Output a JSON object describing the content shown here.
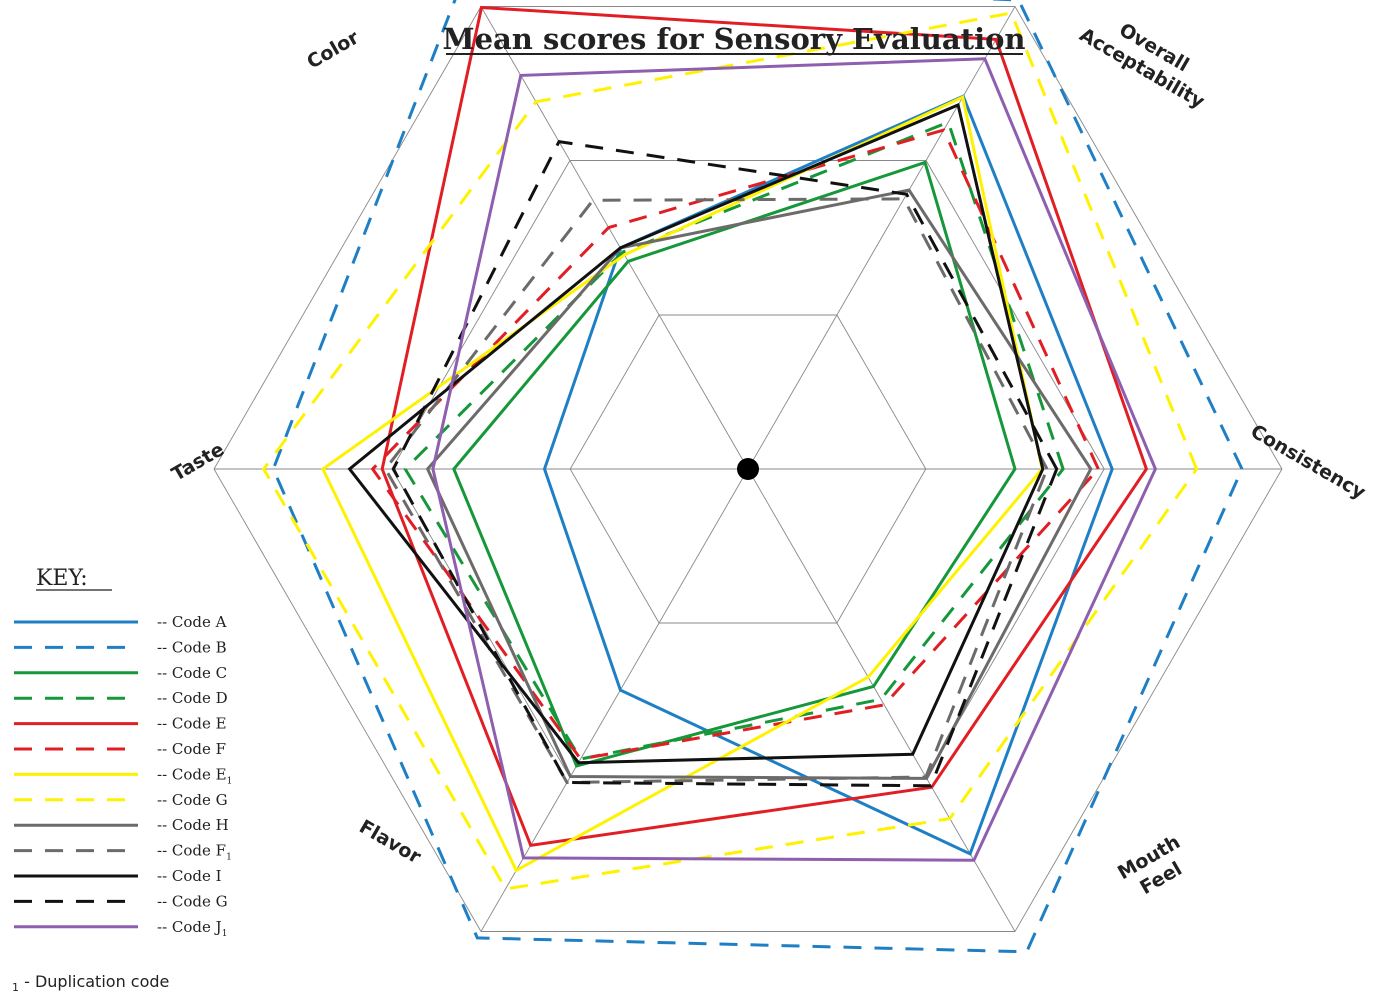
{
  "chart_data": {
    "type": "radar",
    "title": "Mean scores for Sensory Evaluation",
    "axes": [
      "Consistency",
      "Overall Acceptability",
      "Color",
      "Taste",
      "Flavor",
      "Mouth Feel"
    ],
    "axis_display": [
      {
        "axis": "Consistency",
        "lines": [
          "Consistency"
        ]
      },
      {
        "axis": "Overall Acceptability",
        "lines": [
          "Overall",
          "Acceptability"
        ]
      },
      {
        "axis": "Color",
        "lines": [
          "Color"
        ]
      },
      {
        "axis": "Taste",
        "lines": [
          "Taste"
        ]
      },
      {
        "axis": "Flavor",
        "lines": [
          "Flavor"
        ]
      },
      {
        "axis": "Mouth Feel",
        "lines": [
          "Mouth",
          "Feel"
        ]
      }
    ],
    "scale_note": "values are relative to the outermost grid hexagon (=1.0)",
    "series": [
      {
        "name": "-- Code A",
        "base": "-- Code A",
        "sub": "",
        "color": "#1f7fc4",
        "dash": false,
        "values": [
          0.682,
          0.806,
          0.478,
          0.381,
          0.478,
          0.832
        ]
      },
      {
        "name": "-- Code B",
        "base": "-- Code B",
        "sub": "",
        "color": "#1f7fc4",
        "dash": true,
        "values": [
          0.925,
          1.014,
          1.064,
          0.889,
          1.014,
          1.044
        ]
      },
      {
        "name": "-- Code C",
        "base": "-- Code C",
        "sub": "",
        "color": "#16973a",
        "dash": false,
        "values": [
          0.5,
          0.663,
          0.449,
          0.551,
          0.642,
          0.47
        ]
      },
      {
        "name": "-- Code D",
        "base": "-- Code D",
        "sub": "",
        "color": "#16973a",
        "dash": true,
        "values": [
          0.59,
          0.75,
          0.469,
          0.642,
          0.627,
          0.498
        ]
      },
      {
        "name": "-- Code E",
        "base": "-- Code E",
        "sub": "",
        "color": "#e11e24",
        "dash": false,
        "values": [
          0.746,
          0.929,
          0.998,
          0.685,
          0.814,
          0.688
        ]
      },
      {
        "name": "-- Code F",
        "base": "-- Code F",
        "sub": "",
        "color": "#e11e24",
        "dash": true,
        "values": [
          0.656,
          0.733,
          0.522,
          0.703,
          0.627,
          0.51
        ]
      },
      {
        "name": "-- Code E₁",
        "base": "-- Code E",
        "sub": "1",
        "color": "#fff200",
        "dash": false,
        "values": [
          0.551,
          0.804,
          0.463,
          0.796,
          0.868,
          0.45
        ]
      },
      {
        "name": "-- Code G",
        "base": "-- Code G",
        "sub": "",
        "color": "#fff200",
        "dash": true,
        "values": [
          0.84,
          0.986,
          0.794,
          0.907,
          0.908,
          0.756
        ]
      },
      {
        "name": "-- Code H",
        "base": "-- Code H",
        "sub": "",
        "color": "#6d6a6a",
        "dash": false,
        "values": [
          0.642,
          0.603,
          0.478,
          0.6,
          0.665,
          0.669
        ]
      },
      {
        "name": "-- Code F₁",
        "base": "-- Code F",
        "sub": "1",
        "color": "#6d6a6a",
        "dash": true,
        "values": [
          0.56,
          0.584,
          0.581,
          0.679,
          0.678,
          0.666
        ]
      },
      {
        "name": "-- Code I",
        "base": "-- Code I",
        "sub": "",
        "color": "#111111",
        "dash": false,
        "values": [
          0.552,
          0.787,
          0.478,
          0.746,
          0.635,
          0.617
        ]
      },
      {
        "name": "-- Code G",
        "base": "-- Code G",
        "sub": "",
        "color": "#111111",
        "dash": true,
        "values": [
          0.578,
          0.594,
          0.708,
          0.664,
          0.678,
          0.685
        ]
      },
      {
        "name": "-- Code J₁",
        "base": "-- Code J",
        "sub": "1",
        "color": "#8e5fae",
        "dash": false,
        "values": [
          0.763,
          0.887,
          0.851,
          0.59,
          0.841,
          0.846
        ]
      }
    ],
    "legend": {
      "title": "KEY:",
      "placement": "bottom-left"
    },
    "footnote": {
      "sub": "1",
      "text": " - Duplication code"
    },
    "grid": true
  }
}
